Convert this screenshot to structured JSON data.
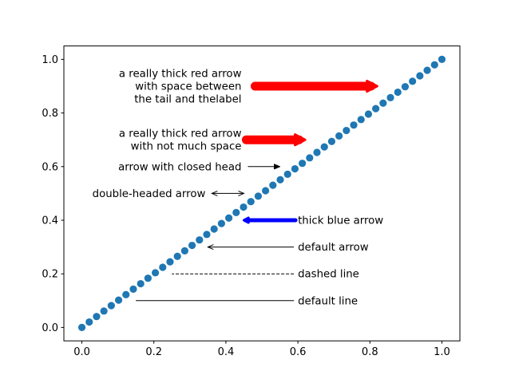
{
  "chart_data": {
    "type": "scatter",
    "title": "",
    "xlabel": "",
    "ylabel": "",
    "xlim": [
      -0.05,
      1.05
    ],
    "ylim": [
      -0.05,
      1.05
    ],
    "xticks": [
      0.0,
      0.2,
      0.4,
      0.6,
      0.8,
      1.0
    ],
    "yticks": [
      0.0,
      0.2,
      0.4,
      0.6,
      0.8,
      1.0
    ],
    "xtick_labels": [
      "0.0",
      "0.2",
      "0.4",
      "0.6",
      "0.8",
      "1.0"
    ],
    "ytick_labels": [
      "0.0",
      "0.2",
      "0.4",
      "0.6",
      "0.8",
      "1.0"
    ],
    "grid": false,
    "series": [
      {
        "color": "#1f77b4",
        "n_points": 50,
        "x_start": 0.0,
        "x_end": 1.0,
        "relation": "y = x"
      }
    ],
    "annotations": [
      {
        "lines": [
          "default line"
        ],
        "text_xy": [
          0.6,
          0.1
        ],
        "target_xy": [
          0.15,
          0.1
        ],
        "style": "line",
        "color": "#000000",
        "width": 1
      },
      {
        "lines": [
          "dashed line"
        ],
        "text_xy": [
          0.6,
          0.2
        ],
        "target_xy": [
          0.25,
          0.2
        ],
        "style": "dashed",
        "color": "#000000",
        "width": 1
      },
      {
        "lines": [
          "default arrow"
        ],
        "text_xy": [
          0.6,
          0.3
        ],
        "target_xy": [
          0.35,
          0.3
        ],
        "style": "arrow",
        "color": "#000000",
        "width": 1
      },
      {
        "lines": [
          "thick blue arrow"
        ],
        "text_xy": [
          0.6,
          0.4
        ],
        "target_xy": [
          0.45,
          0.4
        ],
        "style": "thick",
        "color": "#0000ff",
        "width": 5
      },
      {
        "lines": [
          "double-headed arrow"
        ],
        "text_xy": [
          0.35,
          0.5
        ],
        "target_xy": [
          0.45,
          0.5
        ],
        "style": "double",
        "color": "#000000",
        "width": 1
      },
      {
        "lines": [
          "arrow with closed head"
        ],
        "text_xy": [
          0.45,
          0.6
        ],
        "target_xy": [
          0.55,
          0.6
        ],
        "style": "closed",
        "color": "#000000",
        "width": 1
      },
      {
        "lines": [
          "a really thick red arrow",
          "with not much space"
        ],
        "text_xy": [
          0.45,
          0.7
        ],
        "target_xy": [
          0.62,
          0.7
        ],
        "style": "thick",
        "color": "#ff0000",
        "width": 11
      },
      {
        "lines": [
          "a really thick red arrow",
          "with space between",
          "the tail and thelabel"
        ],
        "text_xy": [
          0.45,
          0.9
        ],
        "target_xy": [
          0.82,
          0.9
        ],
        "style": "thick",
        "color": "#ff0000",
        "width": 11
      }
    ]
  }
}
